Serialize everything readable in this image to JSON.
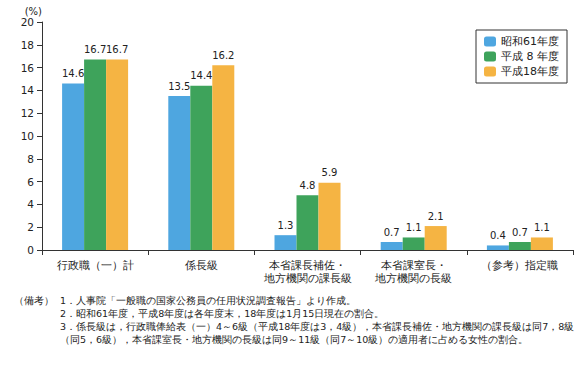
{
  "chart_data": {
    "type": "bar",
    "y_label": "(%)",
    "categories": [
      "行政職（一）計",
      "係長級",
      "本省課長補佐・\n地方機関の課長級",
      "本省課室長・\n地方機関の長級",
      "（参考）指定職"
    ],
    "series": [
      {
        "name": "昭和61年度",
        "color": "#4ea6e0",
        "values": [
          14.6,
          13.5,
          1.3,
          0.7,
          0.4
        ]
      },
      {
        "name": "平成 8 年度",
        "color": "#3ea35b",
        "values": [
          16.7,
          14.4,
          4.8,
          1.1,
          0.7
        ]
      },
      {
        "name": "平成18年度",
        "color": "#f5b443",
        "values": [
          16.7,
          16.2,
          5.9,
          2.1,
          1.1
        ]
      }
    ],
    "ylim": [
      0,
      20
    ],
    "yticks": [
      0,
      2,
      4,
      6,
      8,
      10,
      12,
      14,
      16,
      18,
      20
    ],
    "grid": false,
    "legend": "top-right",
    "data_labels": true,
    "note_heading": "（備考）",
    "notes": [
      "1．人事院「一般職の国家公務員の任用状況調査報告」より作成。",
      "2．昭和61年度，平成8年度は各年度末，18年度は1月15日現在の割合。",
      "3．係長級は，行政職俸給表（一）4～6級（平成18年度は3，4級），本省課長補佐・地方機関の課長級は同7，8級（同5，6級），本省課室長・地方機関の長級は同9～11級（同7～10級）の適用者に占める女性の割合。"
    ]
  }
}
